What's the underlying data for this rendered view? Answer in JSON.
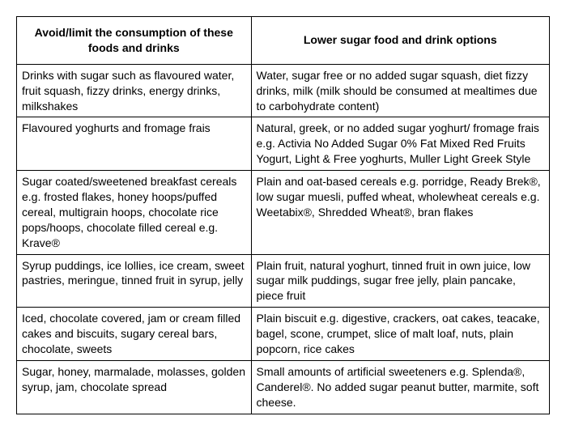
{
  "table": {
    "columns": [
      "Avoid/limit the consumption of these foods and drinks",
      "Lower sugar food and drink options"
    ],
    "rows": [
      [
        "Drinks with sugar such as flavoured water, fruit squash, fizzy drinks, energy drinks, milkshakes",
        "Water, sugar free or no added sugar squash, diet fizzy drinks, milk (milk should be consumed at mealtimes due to carbohydrate content)"
      ],
      [
        "Flavoured yoghurts and fromage frais",
        "Natural, greek, or no added sugar yoghurt/ fromage frais e.g. Activia No Added Sugar 0% Fat Mixed Red Fruits Yogurt, Light & Free yoghurts, Muller Light Greek Style"
      ],
      [
        "Sugar coated/sweetened breakfast cereals e.g. frosted flakes, honey hoops/puffed cereal, multigrain hoops, chocolate rice pops/hoops, chocolate filled cereal e.g. Krave®",
        "Plain and oat-based cereals e.g. porridge, Ready Brek®, low sugar muesli, puffed wheat, wholewheat cereals e.g. Weetabix®, Shredded Wheat®, bran flakes"
      ],
      [
        "Syrup puddings, ice lollies, ice cream, sweet pastries, meringue, tinned fruit in syrup, jelly",
        "Plain fruit, natural yoghurt, tinned fruit in own juice, low sugar milk puddings, sugar free jelly, plain pancake, piece fruit"
      ],
      [
        "Iced, chocolate covered, jam or cream filled cakes and biscuits, sugary cereal bars, chocolate, sweets",
        "Plain biscuit e.g. digestive, crackers, oat cakes, teacake, bagel, scone, crumpet, slice of malt loaf, nuts, plain popcorn, rice cakes"
      ],
      [
        "Sugar, honey, marmalade, molasses, golden syrup, jam, chocolate spread",
        "Small amounts of artificial sweeteners e.g. Splenda®, Canderel®. No added sugar peanut butter, marmite, soft cheese."
      ]
    ]
  }
}
